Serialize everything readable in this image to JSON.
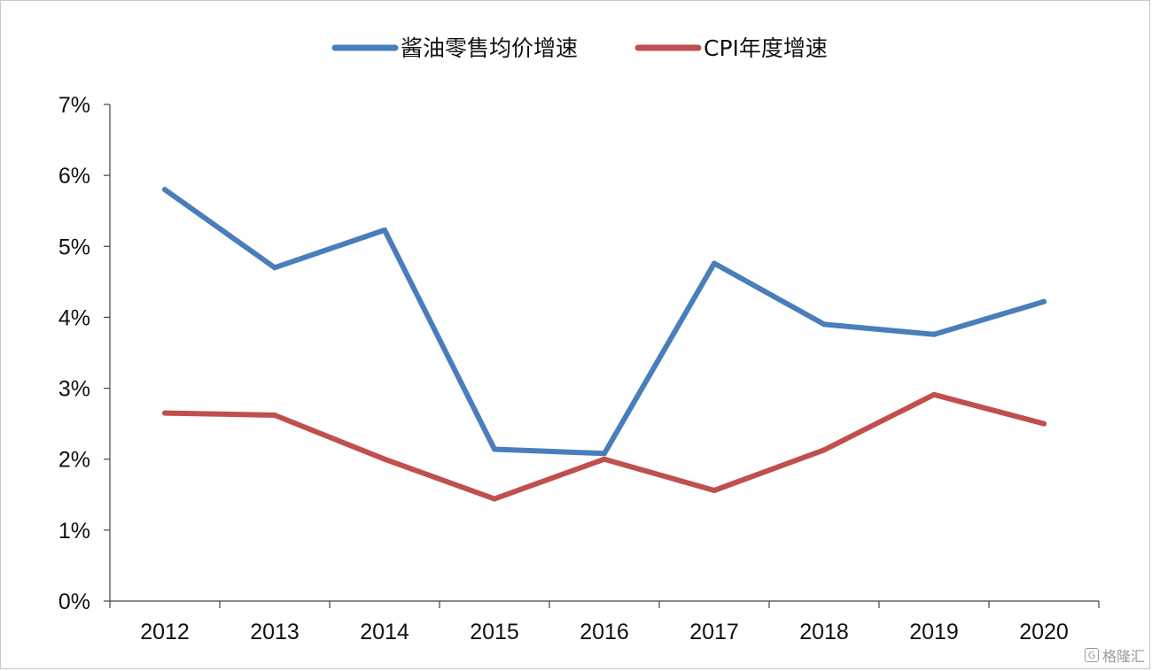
{
  "chart_data": {
    "type": "line",
    "categories": [
      "2012",
      "2013",
      "2014",
      "2015",
      "2016",
      "2017",
      "2018",
      "2019",
      "2020"
    ],
    "series": [
      {
        "name": "酱油零售均价增速",
        "color": "#4a7ebb",
        "values": [
          5.8,
          4.7,
          5.23,
          2.14,
          2.08,
          4.76,
          3.9,
          3.76,
          4.22
        ]
      },
      {
        "name": "CPI年度增速",
        "color": "#c0504d",
        "values": [
          2.65,
          2.62,
          2.0,
          1.44,
          2.0,
          1.56,
          2.13,
          2.91,
          2.5
        ]
      }
    ],
    "ylim": [
      0,
      7
    ],
    "yticks": [
      "0%",
      "1%",
      "2%",
      "3%",
      "4%",
      "5%",
      "6%",
      "7%"
    ],
    "grid": false,
    "legend_position": "top-center",
    "title": "",
    "xlabel": "",
    "ylabel": ""
  },
  "watermark": {
    "logo": "G",
    "text": "格隆汇"
  }
}
